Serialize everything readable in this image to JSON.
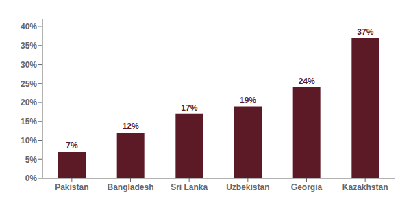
{
  "chart_data": {
    "type": "bar",
    "categories": [
      "Pakistan",
      "Bangladesh",
      "Sri Lanka",
      "Uzbekistan",
      "Georgia",
      "Kazakhstan"
    ],
    "values": [
      0.07,
      0.12,
      0.17,
      0.19,
      0.24,
      0.37
    ],
    "value_labels": [
      "7%",
      "12%",
      "17%",
      "19%",
      "24%",
      "37%"
    ],
    "color": "#5C1A27",
    "ylim": [
      0,
      0.42
    ],
    "yticks": [
      {
        "value": 0.0,
        "label": "0%"
      },
      {
        "value": 0.05,
        "label": "5%"
      },
      {
        "value": 0.1,
        "label": "10%"
      },
      {
        "value": 0.15,
        "label": "15%"
      },
      {
        "value": 0.2,
        "label": "20%"
      },
      {
        "value": 0.25,
        "label": "25%"
      },
      {
        "value": 0.3,
        "label": "30%"
      },
      {
        "value": 0.35,
        "label": "35%"
      },
      {
        "value": 0.4,
        "label": "40%"
      }
    ],
    "grid": false,
    "data_labels": true
  }
}
